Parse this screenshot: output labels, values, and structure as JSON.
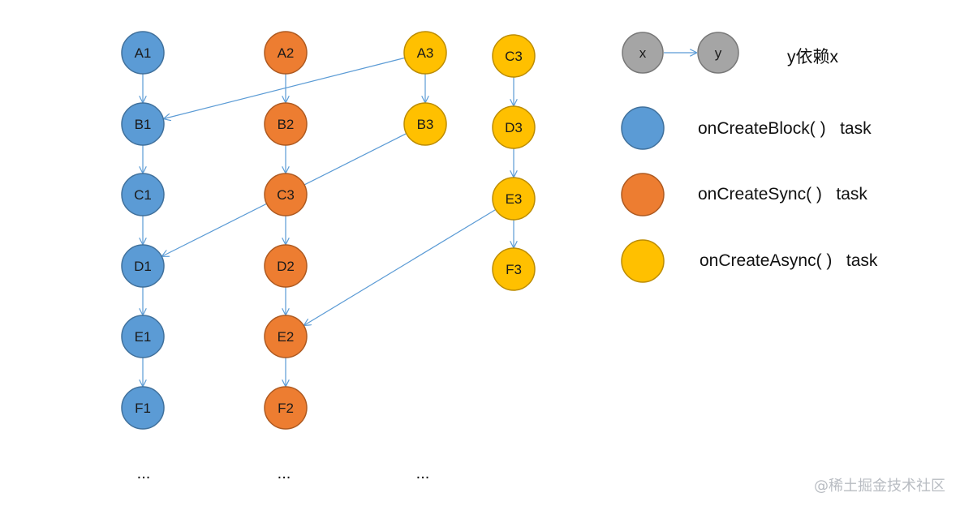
{
  "colors": {
    "block": "#5b9bd5",
    "block_stroke": "#41719c",
    "sync": "#ed7d31",
    "sync_stroke": "#ae5a21",
    "async": "#ffc000",
    "async_stroke": "#bc8c00",
    "legend_gray": "#a5a5a5",
    "legend_gray_stroke": "#787878",
    "arrow": "#5b9bd5"
  },
  "nodes": [
    {
      "id": "A1",
      "label": "A1",
      "kind": "block"
    },
    {
      "id": "B1",
      "label": "B1",
      "kind": "block"
    },
    {
      "id": "C1",
      "label": "C1",
      "kind": "block"
    },
    {
      "id": "D1",
      "label": "D1",
      "kind": "block"
    },
    {
      "id": "E1",
      "label": "E1",
      "kind": "block"
    },
    {
      "id": "F1",
      "label": "F1",
      "kind": "block"
    },
    {
      "id": "A2",
      "label": "A2",
      "kind": "sync"
    },
    {
      "id": "B2",
      "label": "B2",
      "kind": "sync"
    },
    {
      "id": "C3s",
      "label": "C3",
      "kind": "sync"
    },
    {
      "id": "D2",
      "label": "D2",
      "kind": "sync"
    },
    {
      "id": "E2",
      "label": "E2",
      "kind": "sync"
    },
    {
      "id": "F2",
      "label": "F2",
      "kind": "sync"
    },
    {
      "id": "A3",
      "label": "A3",
      "kind": "async"
    },
    {
      "id": "B3",
      "label": "B3",
      "kind": "async"
    },
    {
      "id": "C3",
      "label": "C3",
      "kind": "async"
    },
    {
      "id": "D3",
      "label": "D3",
      "kind": "async"
    },
    {
      "id": "E3",
      "label": "E3",
      "kind": "async"
    },
    {
      "id": "F3",
      "label": "F3",
      "kind": "async"
    }
  ],
  "edges": [
    [
      "A1",
      "B1"
    ],
    [
      "B1",
      "C1"
    ],
    [
      "C1",
      "D1"
    ],
    [
      "D1",
      "E1"
    ],
    [
      "E1",
      "F1"
    ],
    [
      "A2",
      "B2"
    ],
    [
      "B2",
      "C3s"
    ],
    [
      "C3s",
      "D2"
    ],
    [
      "D2",
      "E2"
    ],
    [
      "E2",
      "F2"
    ],
    [
      "A3",
      "B3"
    ],
    [
      "C3",
      "D3"
    ],
    [
      "D3",
      "E3"
    ],
    [
      "E3",
      "F3"
    ],
    [
      "A3",
      "B1"
    ],
    [
      "B3",
      "D1"
    ],
    [
      "E3",
      "E2"
    ]
  ],
  "ellipses": [
    "...",
    "...",
    "..."
  ],
  "legend": {
    "x_label": "x",
    "y_label": "y",
    "dependency_text": "y依赖x",
    "block_text": "onCreateBlock( )   task",
    "sync_text": "onCreateSync( )   task",
    "async_text": "onCreateAsync( )   task"
  },
  "watermark": "@稀土掘金技术社区"
}
